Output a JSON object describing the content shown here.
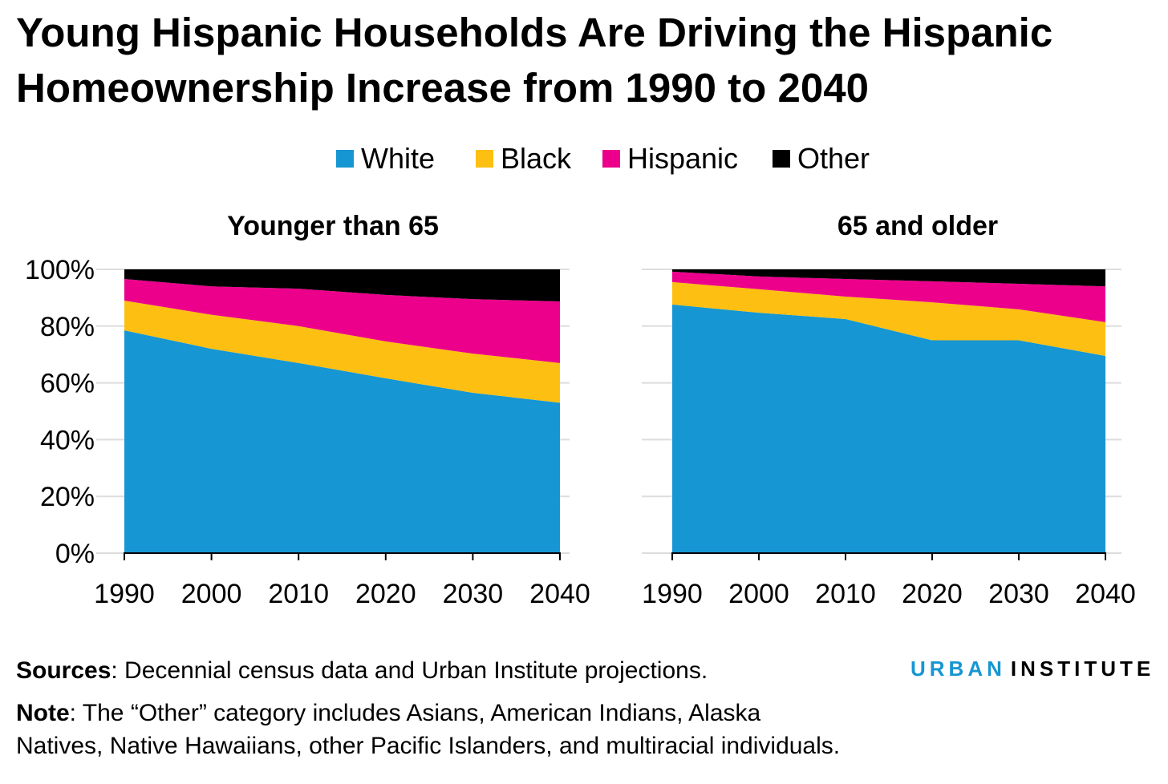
{
  "title_line1": "Young Hispanic Households Are Driving the Hispanic",
  "title_line2": "Homeownership Increase from 1990 to 2040",
  "sources_label": "Sources",
  "sources_text": ": Decennial census data and Urban Institute projections.",
  "note_label": "Note",
  "note_line1": ": The “Other” category includes Asians, American Indians, Alaska",
  "note_line2": "Natives, Native Hawaiians, other Pacific Islanders, and multiracial individuals.",
  "logo": {
    "part1": "URBAN",
    "part2": "INSTITUTE",
    "color": "#1696d2"
  },
  "chart_data": {
    "type": "area",
    "stacked": true,
    "legend": [
      {
        "name": "White",
        "color": "#1696d2"
      },
      {
        "name": "Black",
        "color": "#fdbf11"
      },
      {
        "name": "Hispanic",
        "color": "#ec008b"
      },
      {
        "name": "Other",
        "color": "#000000"
      }
    ],
    "legend_placement": "top-center",
    "y_ticks": [
      "0%",
      "20%",
      "40%",
      "60%",
      "80%",
      "100%"
    ],
    "ylim": [
      0,
      100
    ],
    "grid": true,
    "panels": [
      {
        "title": "Younger than 65",
        "x": [
          "1990",
          "2000",
          "2010",
          "2020",
          "2030",
          "2040"
        ],
        "series": [
          {
            "name": "White",
            "values": [
              78.5,
              72,
              67,
              61.6,
              56.5,
              53
            ]
          },
          {
            "name": "Black",
            "values": [
              10.5,
              12,
              13,
              13,
              13.8,
              14
            ]
          },
          {
            "name": "Hispanic",
            "values": [
              7.6,
              10,
              13.2,
              16.4,
              19.2,
              21.7
            ]
          },
          {
            "name": "Other",
            "values": [
              3.4,
              6,
              6.8,
              9,
              10.5,
              11.3
            ]
          }
        ]
      },
      {
        "title": "65 and older",
        "x": [
          "1990",
          "2000",
          "2010",
          "2020",
          "2030",
          "2040"
        ],
        "series": [
          {
            "name": "White",
            "values": [
              87.6,
              84.7,
              82.5,
              75,
              75,
              69.5
            ]
          },
          {
            "name": "Black",
            "values": [
              7.9,
              8.3,
              7.9,
              13.4,
              10.9,
              11.9
            ]
          },
          {
            "name": "Hispanic",
            "values": [
              3.7,
              4.5,
              6.2,
              7.4,
              9,
              12.6
            ]
          },
          {
            "name": "Other",
            "values": [
              0.8,
              2.5,
              3.4,
              4.2,
              5.1,
              6
            ]
          }
        ]
      }
    ]
  }
}
